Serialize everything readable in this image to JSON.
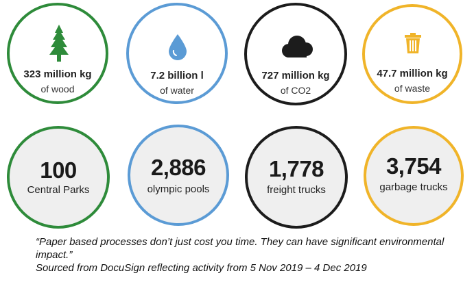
{
  "colors": {
    "green": "#2e8b3a",
    "blue": "#5b9bd5",
    "black": "#1c1c1c",
    "gold": "#f0b429"
  },
  "top_row": [
    {
      "icon": "tree-icon",
      "value": "323 million kg",
      "label": "of wood"
    },
    {
      "icon": "water-drop-icon",
      "value": "7.2 billion l",
      "label": "of water"
    },
    {
      "icon": "cloud-icon",
      "value": "727 million kg",
      "label": "of CO2"
    },
    {
      "icon": "trash-can-icon",
      "value": "47.7 million kg",
      "label": "of waste"
    }
  ],
  "bottom_row": [
    {
      "value": "100",
      "label": "Central Parks"
    },
    {
      "value": "2,886",
      "label": "olympic pools"
    },
    {
      "value": "1,778",
      "label": "freight trucks"
    },
    {
      "value": "3,754",
      "label": "garbage trucks"
    }
  ],
  "quote": "“Paper based processes don’t just cost you time. They can have significant environmental impact.”",
  "source": "Sourced from DocuSign reflecting activity from 5 Nov 2019 – 4 Dec 2019"
}
